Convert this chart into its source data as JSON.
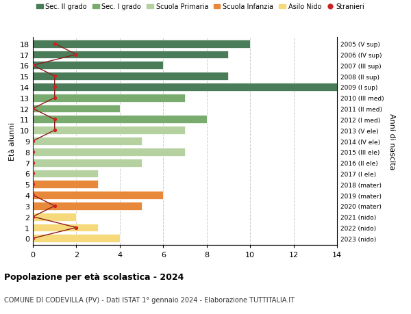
{
  "ages": [
    18,
    17,
    16,
    15,
    14,
    13,
    12,
    11,
    10,
    9,
    8,
    7,
    6,
    5,
    4,
    3,
    2,
    1,
    0
  ],
  "right_labels": [
    "2005 (V sup)",
    "2006 (IV sup)",
    "2007 (III sup)",
    "2008 (II sup)",
    "2009 (I sup)",
    "2010 (III med)",
    "2011 (II med)",
    "2012 (I med)",
    "2013 (V ele)",
    "2014 (IV ele)",
    "2015 (III ele)",
    "2016 (II ele)",
    "2017 (I ele)",
    "2018 (mater)",
    "2019 (mater)",
    "2020 (mater)",
    "2021 (nido)",
    "2022 (nido)",
    "2023 (nido)"
  ],
  "bar_values": [
    10,
    9,
    6,
    9,
    14,
    7,
    4,
    8,
    7,
    5,
    7,
    5,
    3,
    3,
    6,
    5,
    2,
    3,
    4
  ],
  "bar_colors": [
    "#4a7c59",
    "#4a7c59",
    "#4a7c59",
    "#4a7c59",
    "#4a7c59",
    "#7aab6e",
    "#7aab6e",
    "#7aab6e",
    "#b5d1a0",
    "#b5d1a0",
    "#b5d1a0",
    "#b5d1a0",
    "#b5d1a0",
    "#e8883a",
    "#e8883a",
    "#e8883a",
    "#f5d97a",
    "#f5d97a",
    "#f5d97a"
  ],
  "stranieri_values": [
    1,
    2,
    0,
    1,
    1,
    1,
    0,
    1,
    1,
    0,
    0,
    0,
    0,
    0,
    0,
    1,
    0,
    2,
    0
  ],
  "title": "Popolazione per età scolastica - 2024",
  "subtitle": "COMUNE DI CODEVILLA (PV) - Dati ISTAT 1° gennaio 2024 - Elaborazione TUTTITALIA.IT",
  "ylabel": "Età alunni",
  "right_ylabel": "Anni di nascita",
  "xlim": [
    0,
    14
  ],
  "xticks": [
    0,
    2,
    4,
    6,
    8,
    10,
    12,
    14
  ],
  "legend_labels": [
    "Sec. II grado",
    "Sec. I grado",
    "Scuola Primaria",
    "Scuola Infanzia",
    "Asilo Nido",
    "Stranieri"
  ],
  "legend_colors": [
    "#4a7c59",
    "#7aab6e",
    "#b5d1a0",
    "#e8883a",
    "#f5d97a",
    "#cc2222"
  ],
  "stranieri_line_color": "#8b1a1a",
  "stranieri_dot_color": "#cc2222",
  "grid_color": "#cccccc",
  "bg_color": "#ffffff"
}
